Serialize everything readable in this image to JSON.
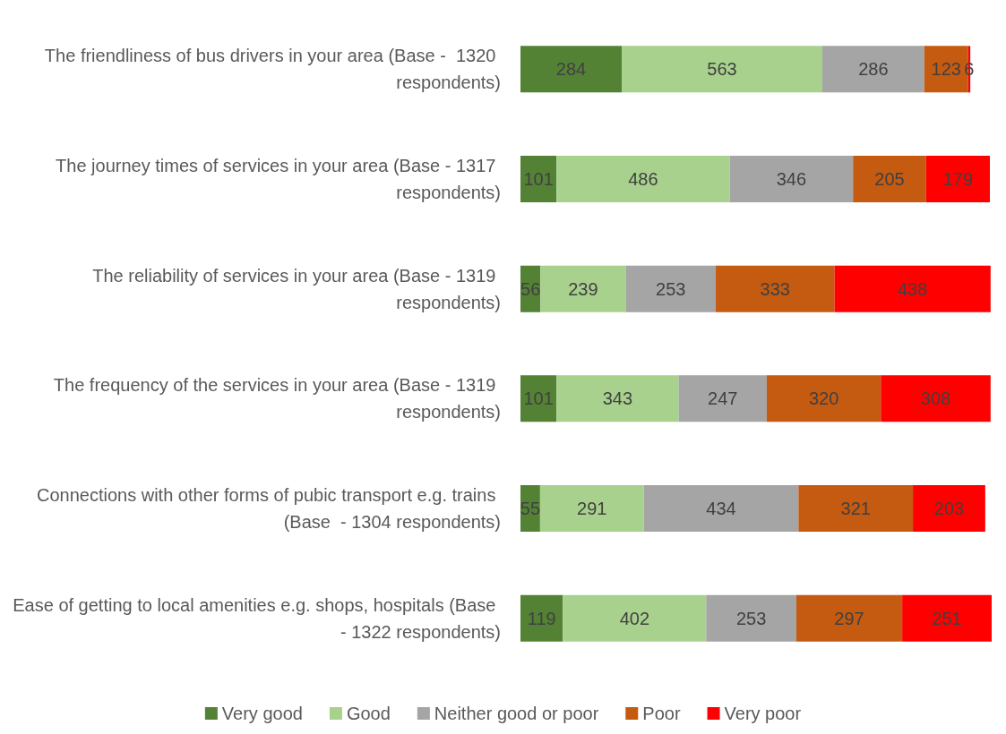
{
  "chart_data": {
    "type": "bar",
    "orientation": "horizontal",
    "stacked": true,
    "data_labels": true,
    "legend": "bottom",
    "categories": [
      "The friendliness of bus drivers in your area (Base -  1320 respondents)",
      "The journey times of services in your area (Base - 1317 respondents)",
      "The reliability of services in your area (Base - 1319 respondents)",
      "The frequency of the services in your area (Base - 1319 respondents)",
      "Connections with other forms of pubic transport e.g. trains (Base  - 1304 respondents)",
      "Ease of getting to local amenities e.g. shops, hospitals (Base - 1322 respondents)"
    ],
    "series": [
      {
        "name": "Very good",
        "color": "#548235",
        "values": [
          284,
          101,
          56,
          101,
          55,
          119
        ]
      },
      {
        "name": "Good",
        "color": "#a9d18e",
        "values": [
          563,
          486,
          239,
          343,
          291,
          402
        ]
      },
      {
        "name": "Neither good or poor",
        "color": "#a5a5a5",
        "values": [
          286,
          346,
          253,
          247,
          434,
          253
        ]
      },
      {
        "name": "Poor",
        "color": "#c55a11",
        "values": [
          123,
          205,
          333,
          320,
          321,
          297
        ]
      },
      {
        "name": "Very poor",
        "color": "#ff0000",
        "values": [
          6,
          179,
          438,
          308,
          203,
          251
        ]
      }
    ]
  }
}
